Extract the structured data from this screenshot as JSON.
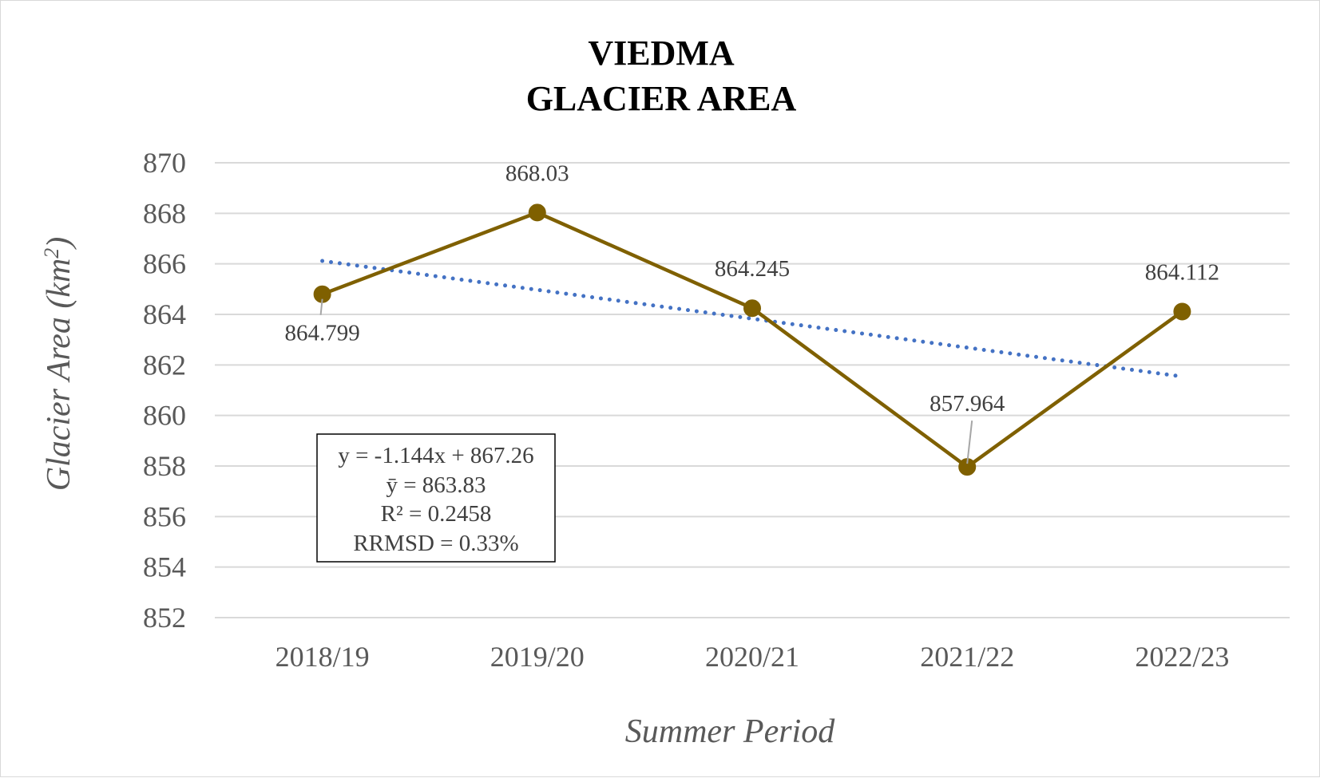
{
  "chart_data": {
    "type": "line",
    "title": [
      "VIEDMA",
      "GLACIER AREA"
    ],
    "xlabel": "Summer Period",
    "ylabel": "Glacier Area (km",
    "ylabel_sup": "2",
    "ylabel_close": ")",
    "categories": [
      "2018/19",
      "2019/20",
      "2020/21",
      "2021/22",
      "2022/23"
    ],
    "series": [
      {
        "values": [
          864.799,
          868.03,
          864.245,
          857.964,
          864.112
        ],
        "labels": [
          "864.799",
          "868.03",
          "864.245",
          "857.964",
          "864.112"
        ],
        "label_positions": [
          "below",
          "above",
          "above",
          "above",
          "above"
        ],
        "color": "#7f6000"
      }
    ],
    "trendline": {
      "type": "linear",
      "slope": -1.144,
      "intercept": 867.26,
      "color": "#4472c4",
      "style": "dotted"
    },
    "ylim": [
      852,
      870
    ],
    "yticks": [
      852,
      854,
      856,
      858,
      860,
      862,
      864,
      866,
      868,
      870
    ],
    "grid": true,
    "legend": "none",
    "annotation_box": [
      "y = -1.144x + 867.26",
      "ȳ = 863.83",
      "R² = 0.2458",
      "RRMSD = 0.33%"
    ]
  }
}
